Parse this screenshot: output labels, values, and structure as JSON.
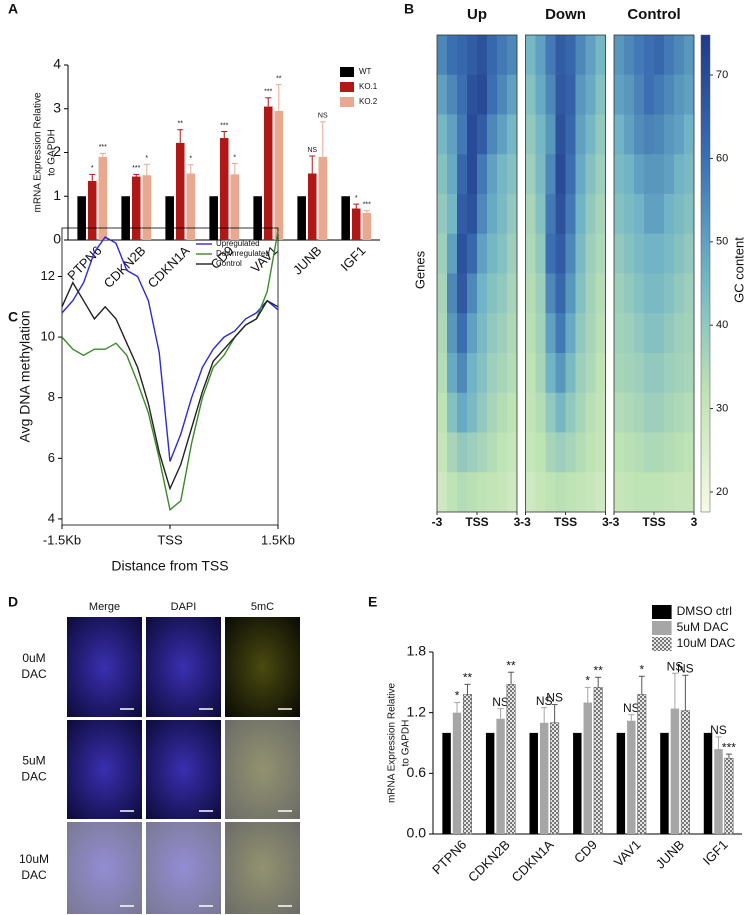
{
  "chart_data": [
    {
      "panel": "A",
      "type": "bar",
      "ylabel": [
        "mRNA Expression Relative",
        "to GAPDH"
      ],
      "categories": [
        "PTPN6",
        "CDKN2B",
        "CDKN1A",
        "CD9",
        "VAV1",
        "JUNB",
        "IGF1"
      ],
      "series": [
        {
          "name": "WT",
          "color": "#000000",
          "values": [
            1,
            1,
            1,
            1,
            1,
            1,
            1
          ]
        },
        {
          "name": "KO.1",
          "color": "#b01818",
          "values": [
            1.35,
            1.45,
            2.22,
            2.33,
            3.05,
            1.52,
            0.72
          ],
          "errors": [
            0.15,
            0.05,
            0.3,
            0.15,
            0.2,
            0.4,
            0.1
          ],
          "significance": [
            "*",
            "***",
            "**",
            "***",
            "***",
            "NS",
            "*"
          ]
        },
        {
          "name": "KO.2",
          "color": "#e8a990",
          "values": [
            1.9,
            1.48,
            1.52,
            1.5,
            2.95,
            1.9,
            0.62
          ],
          "errors": [
            0.08,
            0.25,
            0.2,
            0.25,
            0.6,
            0.8,
            0.05
          ],
          "significance": [
            "***",
            "*",
            "*",
            "*",
            "**",
            "NS",
            "***"
          ]
        }
      ],
      "ylim": [
        0,
        4
      ],
      "yticks": [
        0,
        1,
        2,
        3,
        4
      ],
      "grid": false,
      "legend": "top-right"
    },
    {
      "panel": "B",
      "type": "heatmap",
      "ylabel": "Genes",
      "colorbar_label": "GC content",
      "xlim": [
        -3,
        3
      ],
      "xticks": [
        -3,
        {
          "value": 0,
          "label": "TSS"
        },
        3
      ],
      "zlim": [
        17.6,
        74.8
      ],
      "zticks": [
        20,
        30,
        40,
        50,
        60,
        70
      ],
      "colorscale": [
        "#f6fae4",
        "#bfe3b4",
        "#6fb3c6",
        "#3a6db0",
        "#203a8a"
      ],
      "panels": [
        {
          "name": "Up",
          "values": [
            [
              55,
              60,
              62,
              65,
              68,
              62,
              58,
              55
            ],
            [
              50,
              55,
              60,
              68,
              70,
              60,
              55,
              50
            ],
            [
              45,
              50,
              58,
              70,
              65,
              55,
              50,
              45
            ],
            [
              42,
              48,
              62,
              70,
              58,
              50,
              45,
              42
            ],
            [
              40,
              45,
              65,
              68,
              55,
              48,
              44,
              40
            ],
            [
              38,
              50,
              68,
              62,
              50,
              45,
              42,
              38
            ],
            [
              36,
              55,
              66,
              55,
              46,
              42,
              40,
              36
            ],
            [
              35,
              52,
              60,
              50,
              44,
              40,
              38,
              35
            ],
            [
              34,
              48,
              55,
              46,
              42,
              38,
              36,
              34
            ],
            [
              32,
              42,
              48,
              44,
              40,
              36,
              34,
              32
            ],
            [
              30,
              36,
              40,
              38,
              36,
              34,
              32,
              30
            ],
            [
              28,
              32,
              34,
              33,
              32,
              31,
              30,
              28
            ]
          ]
        },
        {
          "name": "Down",
          "values": [
            [
              45,
              50,
              58,
              65,
              62,
              55,
              50,
              45
            ],
            [
              42,
              48,
              55,
              66,
              64,
              52,
              48,
              42
            ],
            [
              40,
              45,
              52,
              68,
              62,
              50,
              45,
              40
            ],
            [
              38,
              44,
              55,
              70,
              60,
              48,
              42,
              38
            ],
            [
              36,
              42,
              58,
              68,
              58,
              46,
              40,
              36
            ],
            [
              35,
              40,
              60,
              65,
              55,
              44,
              38,
              35
            ],
            [
              34,
              38,
              55,
              62,
              52,
              42,
              37,
              34
            ],
            [
              33,
              37,
              50,
              58,
              48,
              40,
              36,
              33
            ],
            [
              32,
              36,
              46,
              52,
              44,
              38,
              35,
              32
            ],
            [
              31,
              34,
              40,
              45,
              40,
              36,
              33,
              31
            ],
            [
              30,
              32,
              36,
              38,
              36,
              34,
              32,
              30
            ],
            [
              28,
              30,
              32,
              33,
              32,
              31,
              30,
              28
            ]
          ]
        },
        {
          "name": "Control",
          "values": [
            [
              52,
              55,
              58,
              60,
              62,
              58,
              55,
              52
            ],
            [
              50,
              52,
              56,
              60,
              58,
              55,
              52,
              50
            ],
            [
              46,
              50,
              54,
              56,
              55,
              52,
              50,
              46
            ],
            [
              44,
              46,
              50,
              52,
              52,
              50,
              46,
              44
            ],
            [
              42,
              44,
              46,
              50,
              50,
              46,
              44,
              42
            ],
            [
              40,
              42,
              44,
              46,
              46,
              44,
              42,
              40
            ],
            [
              38,
              40,
              42,
              44,
              44,
              42,
              40,
              38
            ],
            [
              37,
              38,
              40,
              42,
              42,
              40,
              38,
              37
            ],
            [
              36,
              37,
              38,
              40,
              40,
              38,
              37,
              36
            ],
            [
              34,
              35,
              36,
              38,
              38,
              36,
              35,
              34
            ],
            [
              32,
              33,
              34,
              35,
              35,
              34,
              33,
              32
            ],
            [
              30,
              31,
              32,
              32,
              32,
              31,
              30,
              30
            ]
          ]
        }
      ]
    },
    {
      "panel": "C",
      "type": "line",
      "xlabel": "Distance from TSS",
      "ylabel": "Avg DNA methylation",
      "x": [
        -1500,
        -1350,
        -1200,
        -1050,
        -900,
        -750,
        -600,
        -450,
        -300,
        -150,
        0,
        150,
        300,
        450,
        600,
        750,
        900,
        1050,
        1200,
        1350,
        1500
      ],
      "series": [
        {
          "name": "Upregulated",
          "color": "#2b2bd6",
          "values": [
            10.8,
            11.2,
            11.8,
            12.8,
            13.3,
            13.1,
            12.2,
            12.0,
            11.2,
            9.5,
            5.9,
            6.8,
            8.0,
            9.0,
            9.6,
            10.0,
            10.2,
            10.6,
            10.8,
            11.2,
            10.9
          ]
        },
        {
          "name": "Downregulated",
          "color": "#3a8a2a",
          "values": [
            10.0,
            9.6,
            9.4,
            9.6,
            9.6,
            9.8,
            9.4,
            8.5,
            7.5,
            6.0,
            4.3,
            4.6,
            6.5,
            8.0,
            9.0,
            9.4,
            10.0,
            10.4,
            10.6,
            11.5,
            13.5
          ]
        },
        {
          "name": "Control",
          "color": "#222222",
          "values": [
            11.0,
            11.8,
            11.2,
            10.6,
            11.0,
            10.6,
            9.8,
            9.0,
            7.8,
            6.2,
            5.0,
            5.8,
            7.0,
            8.2,
            9.2,
            9.6,
            10.0,
            10.4,
            10.6,
            11.2,
            11.0
          ]
        }
      ],
      "xlim": [
        -1500,
        1500
      ],
      "xticks": [
        {
          "value": -1500,
          "label": "-1.5Kb"
        },
        {
          "value": 0,
          "label": "TSS"
        },
        {
          "value": 1500,
          "label": "1.5Kb"
        }
      ],
      "ylim": [
        3.8,
        13.6
      ],
      "yticks": [
        4,
        6,
        8,
        10,
        12
      ],
      "legend": "top-right"
    },
    {
      "panel": "E",
      "type": "bar",
      "ylabel": [
        "mRNA Expression Relative",
        "to GAPDH"
      ],
      "categories": [
        "PTPN6",
        "CDKN2B",
        "CDKN1A",
        "CD9",
        "VAV1",
        "JUNB",
        "IGF1"
      ],
      "series": [
        {
          "name": "DMSO ctrl",
          "color": "#000000",
          "values": [
            1,
            1,
            1,
            1,
            1,
            1,
            1
          ]
        },
        {
          "name": "5uM DAC",
          "color": "#a6a6a6",
          "values": [
            1.2,
            1.14,
            1.1,
            1.3,
            1.12,
            1.24,
            0.84
          ],
          "errors": [
            0.1,
            0.1,
            0.15,
            0.15,
            0.06,
            0.35,
            0.12
          ],
          "significance": [
            "*",
            "NS",
            "NS",
            "*",
            "NS",
            "NS",
            "NS"
          ]
        },
        {
          "name": "10uM DAC",
          "color": "#9a9a9a",
          "hatch": "checkered",
          "values": [
            1.38,
            1.48,
            1.1,
            1.45,
            1.38,
            1.22,
            0.75
          ],
          "errors": [
            0.1,
            0.12,
            0.18,
            0.1,
            0.18,
            0.35,
            0.04
          ],
          "significance": [
            "**",
            "**",
            "NS",
            "**",
            "*",
            "NS",
            "***"
          ]
        }
      ],
      "ylim": [
        0,
        1.8
      ],
      "yticks": [
        {
          "value": 0,
          "label": "0.0"
        },
        0.6,
        1.2,
        1.8
      ],
      "grid": false,
      "legend": "top-right"
    }
  ],
  "panel_d": {
    "panel": "D",
    "columns": [
      "Merge",
      "DAPI",
      "5mC"
    ],
    "rows": [
      [
        "0uM",
        "DAC"
      ],
      [
        "5uM",
        "DAC"
      ],
      [
        "10uM",
        "DAC"
      ]
    ]
  }
}
